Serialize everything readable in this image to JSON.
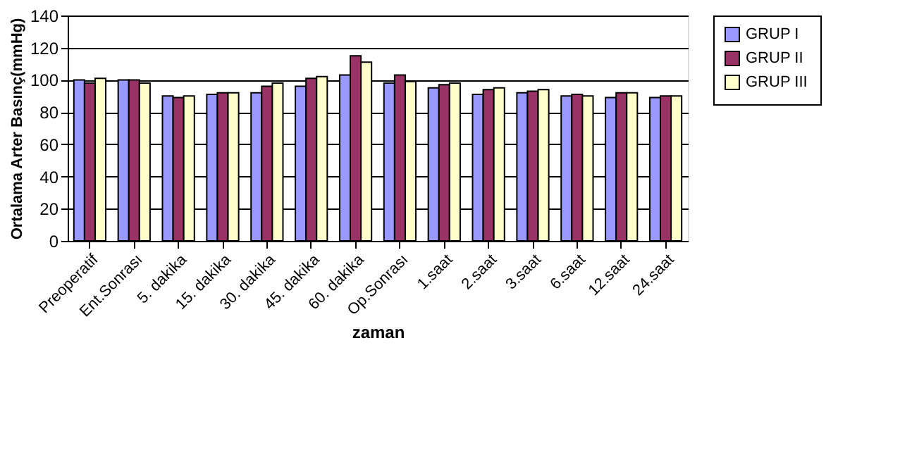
{
  "chart_data": {
    "type": "bar",
    "xlabel": "zaman",
    "ylabel": "Ortalama Arter Basınç(mmHg)",
    "categories": [
      "Preoperatif",
      "Ent.Sonrası",
      "5. dakika",
      "15. dakika",
      "30. dakika",
      "45. dakika",
      "60. dakika",
      "Op.Sonrası",
      "1.saat",
      "2.saat",
      "3.saat",
      "6.saat",
      "12.saat",
      "24.saat"
    ],
    "series": [
      {
        "name": "GRUP I",
        "color": "#9999ff",
        "values": [
          100,
          100,
          90,
          91,
          92,
          96,
          103,
          98,
          95,
          91,
          92,
          90,
          89,
          89
        ]
      },
      {
        "name": "GRUP II",
        "color": "#993366",
        "values": [
          98,
          100,
          89,
          92,
          96,
          101,
          115,
          103,
          97,
          94,
          93,
          91,
          92,
          90
        ]
      },
      {
        "name": "GRUP III",
        "color": "#ffffcc",
        "values": [
          101,
          98,
          90,
          92,
          98,
          102,
          111,
          99,
          98,
          95,
          94,
          90,
          92,
          90
        ]
      }
    ],
    "ylim": [
      0,
      140
    ],
    "yticks": [
      0,
      20,
      40,
      60,
      80,
      100,
      120,
      140
    ],
    "grid": "y",
    "legend": "right"
  }
}
